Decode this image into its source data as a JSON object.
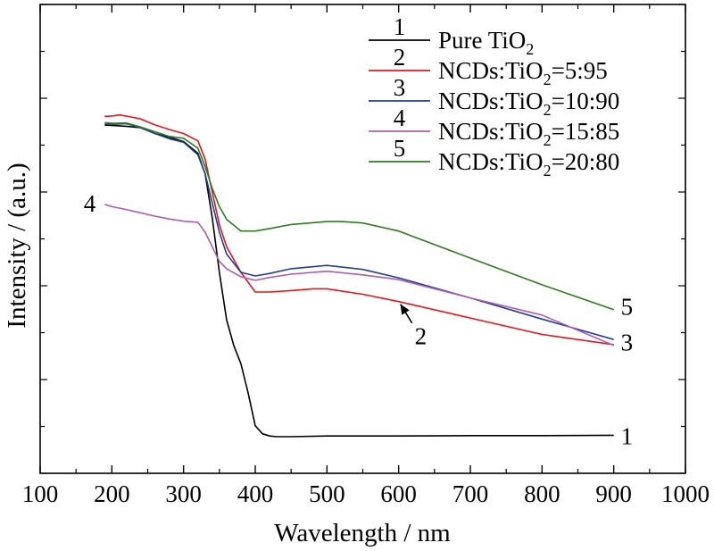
{
  "chart_data": {
    "type": "line",
    "xlabel": "Wavelength / nm",
    "ylabel": "Intensity / (a.u.)",
    "xlim": [
      100,
      1000
    ],
    "ylim": [
      0,
      100
    ],
    "x_ticks": [
      "100",
      "200",
      "300",
      "400",
      "500",
      "600",
      "700",
      "800",
      "900",
      "1000"
    ],
    "y_ticks_labeled": false,
    "grid": false,
    "legend": {
      "position": "top-right",
      "entries": [
        {
          "num": "1",
          "text": "Pure TiO",
          "sub": "2",
          "tail": "",
          "color": "#000000"
        },
        {
          "num": "2",
          "text": "NCDs:TiO",
          "sub": "2",
          "tail": "=5:95",
          "color": "#e8141a"
        },
        {
          "num": "3",
          "text": "NCDs:TiO",
          "sub": "2",
          "tail": "=10:90",
          "color": "#1f3f99"
        },
        {
          "num": "4",
          "text": "NCDs:TiO",
          "sub": "2",
          "tail": "=15:85",
          "color": "#b05ab5"
        },
        {
          "num": "5",
          "text": "NCDs:TiO",
          "sub": "2",
          "tail": "=20:80",
          "color": "#2e7d1e"
        }
      ]
    },
    "series": [
      {
        "name": "Pure TiO2",
        "label": "1",
        "color": "#000000",
        "x": [
          190,
          200,
          220,
          240,
          260,
          280,
          300,
          320,
          330,
          340,
          350,
          360,
          370,
          380,
          390,
          400,
          410,
          420,
          430,
          450,
          500,
          600,
          700,
          800,
          900
        ],
        "y": [
          85.3,
          85.2,
          85.0,
          84.6,
          83.0,
          82.0,
          80.8,
          77.6,
          72.0,
          60.0,
          45.0,
          32.0,
          25.0,
          20.0,
          12.0,
          3.0,
          0.8,
          0.2,
          0.0,
          0.0,
          0.2,
          0.2,
          0.3,
          0.3,
          0.4
        ]
      },
      {
        "name": "NCDs:TiO2=5:95",
        "label": "2",
        "color": "#e8141a",
        "x": [
          190,
          200,
          210,
          220,
          240,
          260,
          280,
          300,
          320,
          330,
          340,
          350,
          360,
          380,
          400,
          420,
          450,
          480,
          500,
          550,
          600,
          700,
          800,
          900
        ],
        "y": [
          87.7,
          87.8,
          88.1,
          87.8,
          87.0,
          85.4,
          84.1,
          83.0,
          81.0,
          76.0,
          67.0,
          58.0,
          52.0,
          45.0,
          39.6,
          39.6,
          40.0,
          40.5,
          40.5,
          39.0,
          37.0,
          32.5,
          28.0,
          25.2
        ]
      },
      {
        "name": "NCDs:TiO2=10:90",
        "label": "3",
        "color": "#1f3f99",
        "x": [
          190,
          200,
          220,
          240,
          260,
          280,
          300,
          320,
          330,
          340,
          350,
          360,
          380,
          400,
          420,
          450,
          500,
          550,
          600,
          700,
          800,
          900
        ],
        "y": [
          85.6,
          85.5,
          85.7,
          84.6,
          83.0,
          81.6,
          80.6,
          77.2,
          72.0,
          64.0,
          56.0,
          50.0,
          45.0,
          44.0,
          44.7,
          46.0,
          46.9,
          45.8,
          43.5,
          38.0,
          32.2,
          26.6
        ]
      },
      {
        "name": "NCDs:TiO2=15:85",
        "label": "4",
        "color": "#b05ab5",
        "x": [
          190,
          200,
          220,
          240,
          260,
          280,
          300,
          320,
          330,
          340,
          350,
          360,
          380,
          400,
          420,
          450,
          500,
          550,
          600,
          700,
          800,
          900
        ],
        "y": [
          63.6,
          63.0,
          62.2,
          61.3,
          60.4,
          59.6,
          59.0,
          58.7,
          56.0,
          52.0,
          48.0,
          46.0,
          43.8,
          42.8,
          43.6,
          44.5,
          45.3,
          44.3,
          43.0,
          38.0,
          33.3,
          25.0
        ]
      },
      {
        "name": "NCDs:TiO2=20:80",
        "label": "5",
        "color": "#2e7d1e",
        "x": [
          190,
          200,
          220,
          240,
          260,
          280,
          300,
          320,
          330,
          340,
          350,
          360,
          380,
          400,
          420,
          450,
          500,
          520,
          550,
          600,
          700,
          800,
          900
        ],
        "y": [
          86.0,
          85.8,
          85.9,
          84.8,
          83.5,
          82.2,
          81.7,
          79.0,
          74.0,
          68.0,
          63.0,
          59.5,
          56.3,
          56.3,
          57.0,
          58.1,
          58.9,
          58.9,
          58.5,
          56.3,
          48.9,
          41.6,
          34.8
        ]
      }
    ],
    "annotations": [
      {
        "text": "1",
        "x": 900,
        "y": 0.4,
        "series": "Pure TiO2"
      },
      {
        "text": "2",
        "x": 600,
        "y": 37.0,
        "series": "NCDs:TiO2=5:95",
        "arrow": true
      },
      {
        "text": "3",
        "x": 900,
        "y": 25.5,
        "series": "NCDs:TiO2=10:90"
      },
      {
        "text": "4",
        "x": 190,
        "y": 63.6,
        "series": "NCDs:TiO2=15:85"
      },
      {
        "text": "5",
        "x": 900,
        "y": 34.8,
        "series": "NCDs:TiO2=20:80"
      }
    ]
  }
}
